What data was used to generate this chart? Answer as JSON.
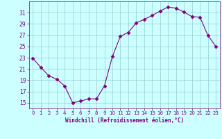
{
  "x": [
    0,
    1,
    2,
    3,
    4,
    5,
    6,
    7,
    8,
    9,
    10,
    11,
    12,
    13,
    14,
    15,
    16,
    17,
    18,
    19,
    20,
    21,
    22,
    23
  ],
  "y": [
    22.9,
    21.3,
    19.8,
    19.2,
    18.0,
    15.0,
    15.3,
    15.7,
    15.7,
    18.0,
    23.2,
    26.8,
    27.5,
    29.2,
    29.8,
    30.5,
    31.3,
    32.0,
    31.8,
    31.1,
    30.3,
    30.2,
    27.0,
    25.0
  ],
  "line_color": "#800080",
  "marker": "D",
  "marker_size": 2.5,
  "bg_color": "#ccffff",
  "grid_color": "#99cccc",
  "xlabel": "Windchill (Refroidissement éolien,°C)",
  "xlabel_color": "#800080",
  "tick_color": "#800080",
  "yticks": [
    15,
    17,
    19,
    21,
    23,
    25,
    27,
    29,
    31
  ],
  "xticks": [
    0,
    1,
    2,
    3,
    4,
    5,
    6,
    7,
    8,
    9,
    10,
    11,
    12,
    13,
    14,
    15,
    16,
    17,
    18,
    19,
    20,
    21,
    22,
    23
  ],
  "ylim": [
    14.0,
    33.0
  ],
  "xlim": [
    -0.5,
    23.5
  ],
  "figsize": [
    3.2,
    2.0
  ],
  "dpi": 100
}
